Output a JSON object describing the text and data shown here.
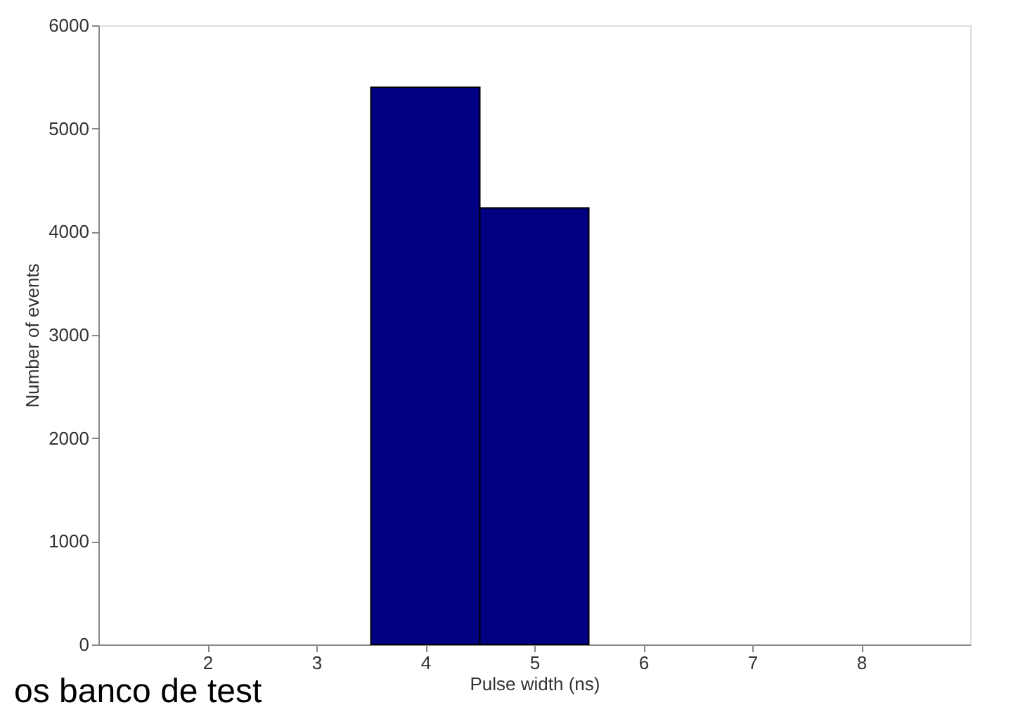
{
  "chart_data": {
    "type": "histogram",
    "xlabel": "Pulse width (ns)",
    "ylabel": "Number of events",
    "bins": [
      3.5,
      4.5,
      5.5
    ],
    "values": [
      5400,
      4230
    ],
    "color": "#000080",
    "xlim": [
      1,
      9
    ],
    "xticks": [
      2,
      3,
      4,
      5,
      6,
      7,
      8
    ],
    "ylim": [
      0,
      6000
    ],
    "yticks": [
      0,
      1000,
      2000,
      3000,
      4000,
      5000,
      6000
    ],
    "grid": false,
    "annotations": [
      "os banco de test"
    ]
  }
}
